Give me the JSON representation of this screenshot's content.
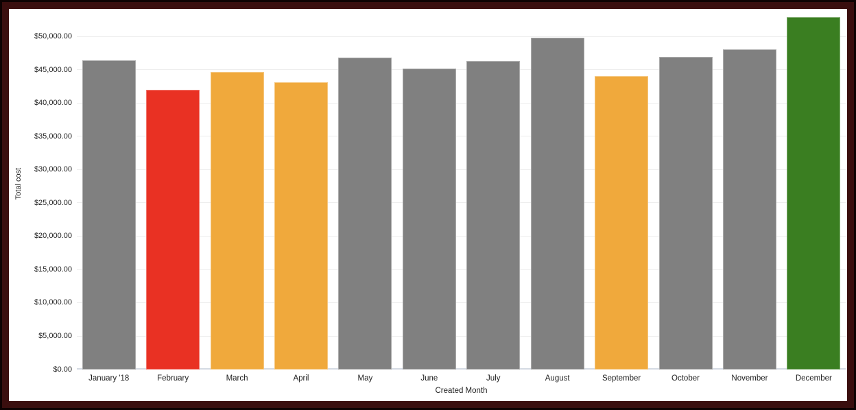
{
  "frame": {
    "outer_border_color": "#0d0202",
    "inner_border_color": "#3a0e0e",
    "canvas_background": "#ffffff"
  },
  "chart_data": {
    "type": "bar",
    "title": "",
    "xlabel": "Created Month",
    "ylabel": "Total cost",
    "categories": [
      "January '18",
      "February",
      "March",
      "April",
      "May",
      "June",
      "July",
      "August",
      "September",
      "October",
      "November",
      "December"
    ],
    "series": [
      {
        "name": "Total cost",
        "values": [
          46500,
          42100,
          44700,
          43200,
          46900,
          45300,
          46400,
          49900,
          44100,
          47000,
          48100,
          53000
        ]
      }
    ],
    "bar_colors": [
      "#808080",
      "#E93123",
      "#F0A93C",
      "#F0A93C",
      "#808080",
      "#808080",
      "#808080",
      "#808080",
      "#F0A93C",
      "#808080",
      "#808080",
      "#3A7E21"
    ],
    "color_legend": {
      "default": "#808080",
      "red_alert": "#E93123",
      "orange_warning": "#F0A93C",
      "green_good": "#3A7E21"
    },
    "y_ticks": [
      {
        "label": "$0.00",
        "value": 0
      },
      {
        "label": "$5,000.00",
        "value": 5000
      },
      {
        "label": "$10,000.00",
        "value": 10000
      },
      {
        "label": "$15,000.00",
        "value": 15000
      },
      {
        "label": "$20,000.00",
        "value": 20000
      },
      {
        "label": "$25,000.00",
        "value": 25000
      },
      {
        "label": "$30,000.00",
        "value": 30000
      },
      {
        "label": "$35,000.00",
        "value": 35000
      },
      {
        "label": "$40,000.00",
        "value": 40000
      },
      {
        "label": "$45,000.00",
        "value": 45000
      },
      {
        "label": "$50,000.00",
        "value": 50000
      }
    ],
    "ylim": [
      0,
      53500
    ],
    "grid": true,
    "legend_position": "none",
    "gridline_color": "#ededed",
    "baseline_color": "#d4dae3",
    "axis_text_color": "#222222"
  }
}
